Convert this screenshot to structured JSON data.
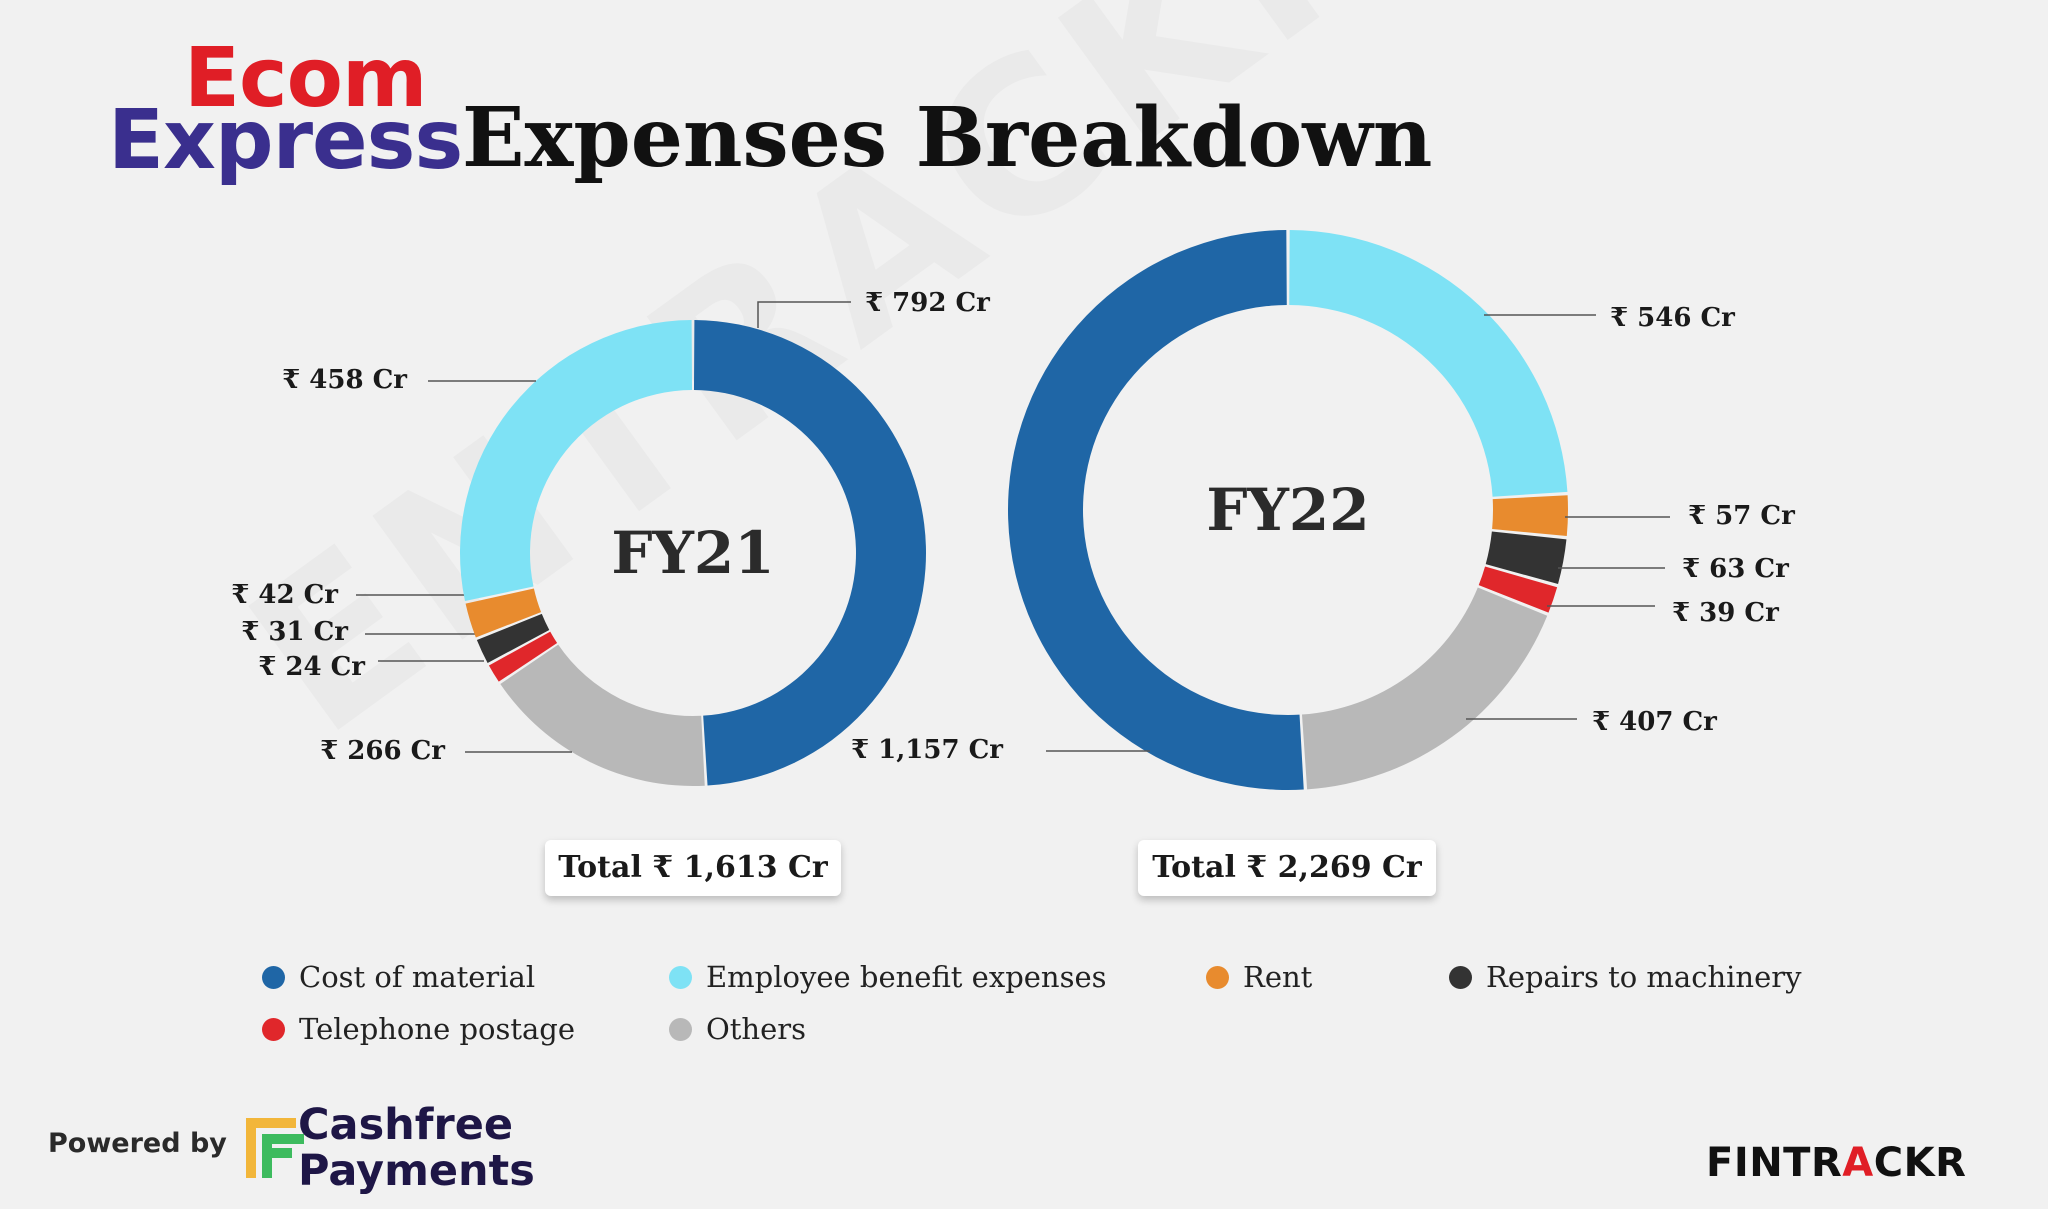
{
  "brand": {
    "line1": "Ecom",
    "line2": "Express"
  },
  "title": "Expenses Breakdown",
  "watermark": "ENTRACKR",
  "colors": {
    "cost_of_material": "#1f66a6",
    "employee_benefit": "#7ee2f5",
    "rent": "#e88b2e",
    "repairs": "#333333",
    "telephone": "#e0272b",
    "others": "#b8b8b8"
  },
  "chart_data": [
    {
      "type": "pie",
      "center_label": "FY21",
      "total_label": "Total ₹ 1,613 Cr",
      "series": [
        {
          "name": "Cost of material",
          "value": 792,
          "label": "₹ 792 Cr",
          "color_key": "cost_of_material"
        },
        {
          "name": "Others",
          "value": 266,
          "label": "₹ 266 Cr",
          "color_key": "others"
        },
        {
          "name": "Telephone postage",
          "value": 24,
          "label": "₹ 24 Cr",
          "color_key": "telephone"
        },
        {
          "name": "Repairs to machinery",
          "value": 31,
          "label": "₹ 31 Cr",
          "color_key": "repairs"
        },
        {
          "name": "Rent",
          "value": 42,
          "label": "₹ 42 Cr",
          "color_key": "rent"
        },
        {
          "name": "Employee benefit expenses",
          "value": 458,
          "label": "₹ 458 Cr",
          "color_key": "employee_benefit"
        }
      ]
    },
    {
      "type": "pie",
      "center_label": "FY22",
      "total_label": "Total ₹ 2,269 Cr",
      "series": [
        {
          "name": "Employee benefit expenses",
          "value": 546,
          "label": "₹ 546 Cr",
          "color_key": "employee_benefit"
        },
        {
          "name": "Rent",
          "value": 57,
          "label": "₹ 57 Cr",
          "color_key": "rent"
        },
        {
          "name": "Repairs to machinery",
          "value": 63,
          "label": "₹ 63 Cr",
          "color_key": "repairs"
        },
        {
          "name": "Telephone postage",
          "value": 39,
          "label": "₹ 39 Cr",
          "color_key": "telephone"
        },
        {
          "name": "Others",
          "value": 407,
          "label": "₹ 407 Cr",
          "color_key": "others"
        },
        {
          "name": "Cost of material",
          "value": 1157,
          "label": "₹ 1,157 Cr",
          "color_key": "cost_of_material"
        }
      ]
    }
  ],
  "legend": [
    {
      "label": "Cost of material",
      "color_key": "cost_of_material"
    },
    {
      "label": "Employee benefit expenses",
      "color_key": "employee_benefit"
    },
    {
      "label": "Rent",
      "color_key": "rent"
    },
    {
      "label": "Repairs to machinery",
      "color_key": "repairs"
    },
    {
      "label": "Telephone postage",
      "color_key": "telephone"
    },
    {
      "label": "Others",
      "color_key": "others"
    }
  ],
  "footer": {
    "powered_by": "Powered by",
    "partner_line1": "Cashfree",
    "partner_line2": "Payments",
    "site_part1": "FINTR",
    "site_accent": "A",
    "site_part2": "CKR"
  }
}
